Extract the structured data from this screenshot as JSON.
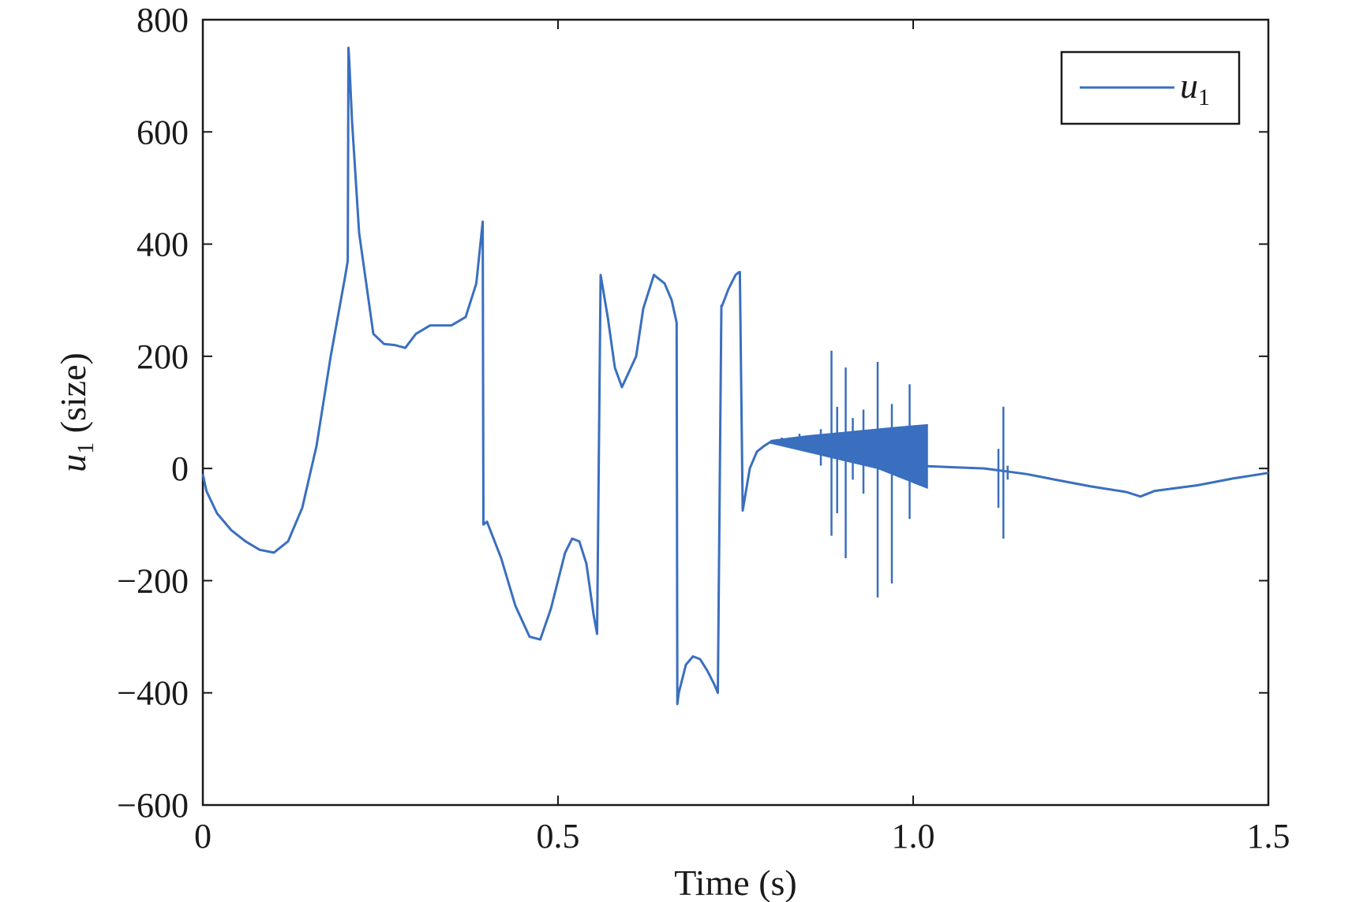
{
  "chart_data": {
    "type": "line",
    "xlabel": "Time (s)",
    "ylabel_main": "u",
    "ylabel_sub": "1",
    "ylabel_rest": " (size)",
    "xlim": [
      0,
      1.5
    ],
    "ylim": [
      -600,
      800
    ],
    "xticks": [
      0,
      0.5,
      1.0,
      1.5
    ],
    "xtick_labels": [
      "0",
      "0.5",
      "1.0",
      "1.5"
    ],
    "yticks": [
      800,
      600,
      400,
      200,
      0,
      -200,
      -400,
      -600
    ],
    "ytick_labels": [
      "800",
      "600",
      "400",
      "200",
      "0",
      "−200",
      "−400",
      "−600"
    ],
    "grid": false,
    "legend": {
      "placement": "top-right",
      "label_main": "u",
      "label_sub": "1"
    },
    "colors": {
      "series": "#3a6fbf",
      "axes": "#1a1a1a"
    },
    "series": [
      {
        "name": "u1",
        "x": [
          0,
          0.005,
          0.02,
          0.04,
          0.06,
          0.08,
          0.1,
          0.12,
          0.14,
          0.16,
          0.18,
          0.2,
          0.204,
          0.205,
          0.206,
          0.21,
          0.22,
          0.24,
          0.255,
          0.27,
          0.285,
          0.3,
          0.32,
          0.35,
          0.37,
          0.385,
          0.394,
          0.395,
          0.4,
          0.42,
          0.44,
          0.46,
          0.475,
          0.49,
          0.51,
          0.52,
          0.53,
          0.54,
          0.55,
          0.555,
          0.56,
          0.57,
          0.58,
          0.59,
          0.61,
          0.62,
          0.635,
          0.65,
          0.66,
          0.667,
          0.668,
          0.67,
          0.68,
          0.69,
          0.7,
          0.71,
          0.72,
          0.725,
          0.73,
          0.731,
          0.74,
          0.75,
          0.755,
          0.756,
          0.76,
          0.77,
          0.78,
          0.79,
          0.8,
          0.82,
          0.86,
          0.9,
          0.94,
          0.98,
          1.01,
          1.02,
          1.06,
          1.1,
          1.13,
          1.16,
          1.2,
          1.25,
          1.3,
          1.32,
          1.33,
          1.34,
          1.4,
          1.45,
          1.5
        ],
        "y": [
          -10,
          -40,
          -80,
          -110,
          -130,
          -145,
          -150,
          -130,
          -70,
          40,
          200,
          340,
          370,
          750,
          730,
          620,
          420,
          240,
          222,
          220,
          215,
          240,
          255,
          255,
          270,
          330,
          440,
          -100,
          -95,
          -160,
          -245,
          -300,
          -305,
          -250,
          -150,
          -125,
          -130,
          -170,
          -260,
          -295,
          345,
          270,
          180,
          145,
          200,
          285,
          345,
          330,
          300,
          260,
          -420,
          -400,
          -350,
          -335,
          -340,
          -360,
          -385,
          -400,
          290,
          290,
          320,
          345,
          350,
          350,
          -75,
          0,
          30,
          40,
          48,
          44,
          38,
          30,
          22,
          15,
          8,
          4,
          2,
          0,
          -5,
          -10,
          -20,
          -32,
          -42,
          -50,
          -45,
          -40,
          -30,
          -18,
          -8
        ],
        "oscillation_band": {
          "x": [
            0.8,
            0.85,
            0.9,
            0.95,
            1.0,
            1.02
          ],
          "upper": [
            50,
            58,
            64,
            70,
            76,
            78
          ],
          "lower": [
            45,
            30,
            15,
            0,
            -25,
            -35
          ]
        },
        "spikes": [
          {
            "x": 0.815,
            "low": 40,
            "high": 55
          },
          {
            "x": 0.84,
            "low": 35,
            "high": 62
          },
          {
            "x": 0.87,
            "low": 5,
            "high": 70
          },
          {
            "x": 0.885,
            "low": -120,
            "high": 210
          },
          {
            "x": 0.893,
            "low": -80,
            "high": 110
          },
          {
            "x": 0.905,
            "low": -160,
            "high": 180
          },
          {
            "x": 0.915,
            "low": -20,
            "high": 90
          },
          {
            "x": 0.93,
            "low": -45,
            "high": 105
          },
          {
            "x": 0.95,
            "low": -230,
            "high": 190
          },
          {
            "x": 0.97,
            "low": -205,
            "high": 115
          },
          {
            "x": 0.995,
            "low": -90,
            "high": 150
          },
          {
            "x": 1.12,
            "low": -70,
            "high": 35
          },
          {
            "x": 1.127,
            "low": -125,
            "high": 110
          },
          {
            "x": 1.133,
            "low": -20,
            "high": 5
          }
        ]
      }
    ]
  }
}
